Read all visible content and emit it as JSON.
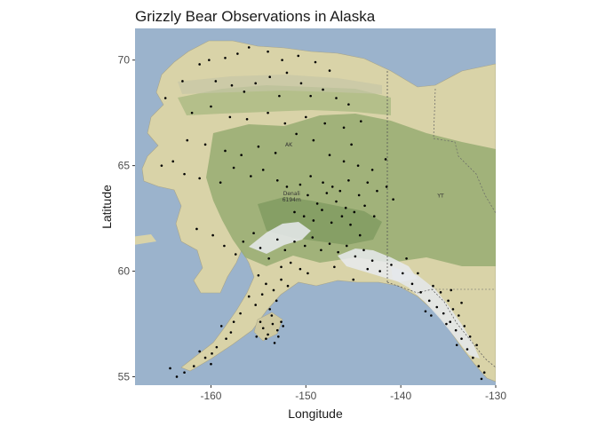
{
  "chart_data": {
    "type": "scatter",
    "title": "Grizzly Bear Observations in Alaska",
    "xlabel": "Longitude",
    "ylabel": "Latitude",
    "xlim": [
      -168,
      -130
    ],
    "ylim": [
      54.6,
      71.5
    ],
    "xticks": [
      -160,
      -150,
      -140,
      -130
    ],
    "yticks": [
      55,
      60,
      65,
      70
    ],
    "xtick_labels": [
      "-160",
      "-150",
      "-140",
      "-130"
    ],
    "ytick_labels": [
      "55",
      "60",
      "65",
      "70"
    ],
    "grid": false,
    "legend": "none",
    "basemap": {
      "labels": [
        {
          "text": "AK",
          "lon": -151.8,
          "lat": 65.9
        },
        {
          "text": "YT",
          "lon": -135.8,
          "lat": 63.5
        },
        {
          "text": "Denali",
          "lon": -151.5,
          "lat": 63.6
        },
        {
          "text": "6194m",
          "lon": -151.5,
          "lat": 63.3
        }
      ],
      "colors": {
        "ocean": "#9bb3cc",
        "lowland": "#d9d3a8",
        "forest": "#96ac72",
        "forest_dark": "#7f9a60",
        "mountain_snow": "#e8eaee",
        "border": "#555555"
      }
    },
    "point_color": "#000000",
    "points": [
      [
        -164.8,
        68.2
      ],
      [
        -163.0,
        69.0
      ],
      [
        -161.2,
        69.8
      ],
      [
        -160.2,
        70.0
      ],
      [
        -158.5,
        70.1
      ],
      [
        -157.2,
        70.3
      ],
      [
        -156.0,
        70.6
      ],
      [
        -154.0,
        70.4
      ],
      [
        -152.5,
        70.0
      ],
      [
        -150.8,
        70.2
      ],
      [
        -149.0,
        69.9
      ],
      [
        -147.5,
        69.5
      ],
      [
        -159.5,
        69.0
      ],
      [
        -157.8,
        68.8
      ],
      [
        -156.5,
        68.5
      ],
      [
        -155.3,
        68.9
      ],
      [
        -153.8,
        69.2
      ],
      [
        -152.0,
        69.4
      ],
      [
        -150.5,
        68.9
      ],
      [
        -149.5,
        68.3
      ],
      [
        -148.2,
        68.6
      ],
      [
        -146.8,
        68.2
      ],
      [
        -145.5,
        67.9
      ],
      [
        -152.8,
        68.3
      ],
      [
        -162.0,
        67.5
      ],
      [
        -160.0,
        67.8
      ],
      [
        -158.0,
        67.3
      ],
      [
        -156.2,
        67.2
      ],
      [
        -154.0,
        67.5
      ],
      [
        -152.2,
        67.0
      ],
      [
        -150.0,
        67.3
      ],
      [
        -148.0,
        67.0
      ],
      [
        -146.0,
        66.8
      ],
      [
        -144.2,
        67.1
      ],
      [
        -151.0,
        66.5
      ],
      [
        -149.2,
        66.2
      ],
      [
        -162.5,
        66.2
      ],
      [
        -160.6,
        66.0
      ],
      [
        -158.5,
        65.7
      ],
      [
        -156.8,
        65.5
      ],
      [
        -155.0,
        65.9
      ],
      [
        -153.2,
        65.6
      ],
      [
        -147.5,
        65.5
      ],
      [
        -146.0,
        65.2
      ],
      [
        -144.5,
        65.0
      ],
      [
        -143.0,
        64.8
      ],
      [
        -141.6,
        65.3
      ],
      [
        -145.2,
        66.0
      ],
      [
        -165.2,
        65.0
      ],
      [
        -164.0,
        65.2
      ],
      [
        -162.8,
        64.6
      ],
      [
        -161.2,
        64.4
      ],
      [
        -159.0,
        64.2
      ],
      [
        -157.6,
        64.9
      ],
      [
        -155.8,
        64.5
      ],
      [
        -154.5,
        64.8
      ],
      [
        -153.0,
        64.3
      ],
      [
        -152.0,
        64.0
      ],
      [
        -150.6,
        64.1
      ],
      [
        -149.5,
        64.5
      ],
      [
        -148.2,
        64.2
      ],
      [
        -147.2,
        64.0
      ],
      [
        -146.4,
        63.8
      ],
      [
        -145.5,
        64.3
      ],
      [
        -144.4,
        63.6
      ],
      [
        -143.5,
        64.2
      ],
      [
        -142.5,
        63.8
      ],
      [
        -141.5,
        64.0
      ],
      [
        -140.8,
        63.4
      ],
      [
        -149.8,
        63.6
      ],
      [
        -148.8,
        63.2
      ],
      [
        -147.8,
        63.7
      ],
      [
        -146.8,
        63.3
      ],
      [
        -145.8,
        63.0
      ],
      [
        -144.9,
        62.8
      ],
      [
        -143.8,
        63.1
      ],
      [
        -142.8,
        62.6
      ],
      [
        -151.2,
        62.8
      ],
      [
        -150.2,
        62.6
      ],
      [
        -149.2,
        62.4
      ],
      [
        -148.3,
        62.9
      ],
      [
        -147.3,
        62.3
      ],
      [
        -146.2,
        62.6
      ],
      [
        -145.3,
        62.2
      ],
      [
        -161.5,
        62.0
      ],
      [
        -159.8,
        61.7
      ],
      [
        -158.6,
        61.2
      ],
      [
        -157.4,
        60.8
      ],
      [
        -156.6,
        61.4
      ],
      [
        -155.5,
        61.8
      ],
      [
        -154.8,
        61.1
      ],
      [
        -153.9,
        60.6
      ],
      [
        -153.0,
        61.5
      ],
      [
        -152.2,
        61.0
      ],
      [
        -151.2,
        61.4
      ],
      [
        -150.1,
        61.2
      ],
      [
        -149.3,
        61.6
      ],
      [
        -148.4,
        61.0
      ],
      [
        -147.5,
        61.3
      ],
      [
        -146.6,
        60.9
      ],
      [
        -145.7,
        61.2
      ],
      [
        -144.8,
        60.7
      ],
      [
        -143.9,
        61.0
      ],
      [
        -143.0,
        60.5
      ],
      [
        -152.6,
        60.2
      ],
      [
        -151.6,
        60.4
      ],
      [
        -150.6,
        60.1
      ],
      [
        -149.8,
        59.9
      ],
      [
        -155.0,
        59.8
      ],
      [
        -154.2,
        59.4
      ],
      [
        -153.4,
        59.1
      ],
      [
        -152.6,
        59.6
      ],
      [
        -151.9,
        59.3
      ],
      [
        -156.0,
        58.8
      ],
      [
        -155.3,
        58.4
      ],
      [
        -154.6,
        58.9
      ],
      [
        -153.8,
        58.2
      ],
      [
        -153.1,
        58.6
      ],
      [
        -156.9,
        58.0
      ],
      [
        -157.6,
        57.6
      ],
      [
        -154.5,
        57.3
      ],
      [
        -154.0,
        57.0
      ],
      [
        -153.5,
        57.5
      ],
      [
        -153.0,
        57.2
      ],
      [
        -152.6,
        57.6
      ],
      [
        -154.2,
        56.8
      ],
      [
        -153.6,
        57.9
      ],
      [
        -152.9,
        56.9
      ],
      [
        -155.2,
        56.9
      ],
      [
        -152.4,
        57.4
      ],
      [
        -153.3,
        56.6
      ],
      [
        -154.8,
        57.6
      ],
      [
        -158.4,
        56.8
      ],
      [
        -159.4,
        56.4
      ],
      [
        -160.6,
        55.9
      ],
      [
        -161.8,
        55.5
      ],
      [
        -162.8,
        55.2
      ],
      [
        -163.6,
        55.0
      ],
      [
        -164.3,
        55.4
      ],
      [
        -157.9,
        57.1
      ],
      [
        -159.9,
        56.1
      ],
      [
        -158.9,
        57.4
      ],
      [
        -161.2,
        56.2
      ],
      [
        -160.0,
        55.6
      ],
      [
        -143.5,
        60.1
      ],
      [
        -142.2,
        60.0
      ],
      [
        -141.0,
        60.3
      ],
      [
        -139.8,
        59.9
      ],
      [
        -138.8,
        59.4
      ],
      [
        -137.9,
        59.0
      ],
      [
        -137.0,
        58.6
      ],
      [
        -136.2,
        58.3
      ],
      [
        -135.5,
        58.0
      ],
      [
        -134.8,
        57.6
      ],
      [
        -134.2,
        57.2
      ],
      [
        -133.6,
        56.8
      ],
      [
        -133.0,
        56.3
      ],
      [
        -132.4,
        55.9
      ],
      [
        -131.8,
        55.5
      ],
      [
        -131.2,
        55.2
      ],
      [
        -135.8,
        59.0
      ],
      [
        -135.0,
        58.6
      ],
      [
        -134.5,
        58.2
      ],
      [
        -133.9,
        57.9
      ],
      [
        -136.6,
        59.3
      ],
      [
        -133.3,
        57.4
      ],
      [
        -132.7,
        56.9
      ],
      [
        -134.1,
        56.5
      ],
      [
        -137.4,
        58.1
      ],
      [
        -135.2,
        57.5
      ],
      [
        -132.0,
        56.5
      ],
      [
        -136.8,
        57.9
      ],
      [
        -131.5,
        54.9
      ],
      [
        -134.7,
        59.1
      ],
      [
        -133.6,
        58.5
      ],
      [
        -138.2,
        59.9
      ],
      [
        -139.4,
        60.6
      ],
      [
        -144.3,
        61.7
      ],
      [
        -145.0,
        59.6
      ],
      [
        -147.0,
        60.2
      ]
    ]
  }
}
